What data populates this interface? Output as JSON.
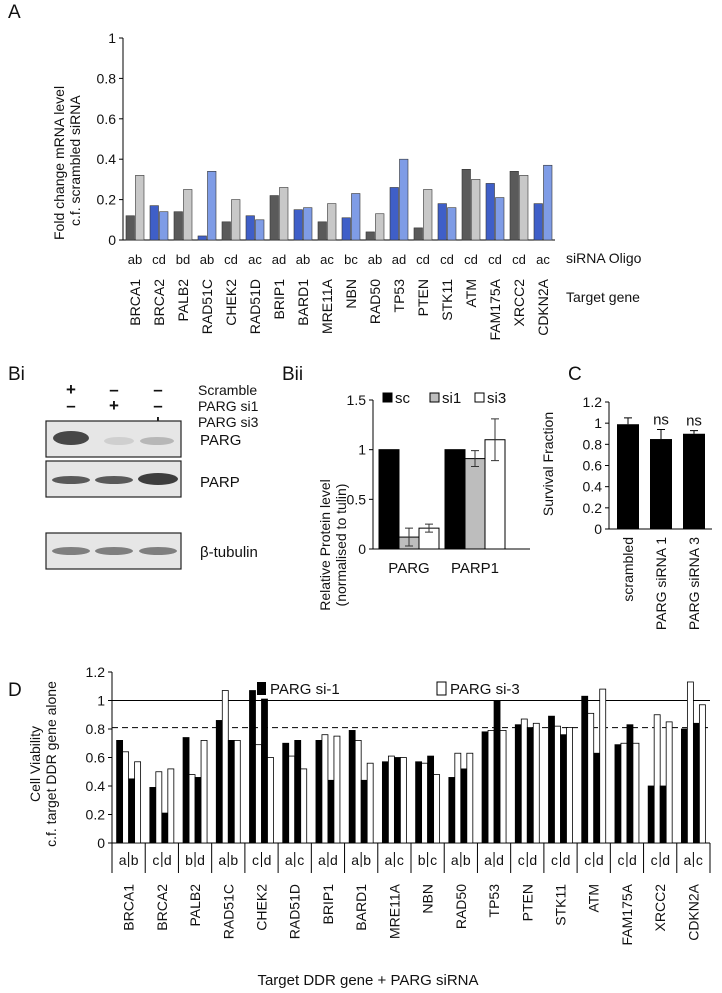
{
  "panels": {
    "A": {
      "label": "A",
      "ylabel_lines": [
        "Fold change mRNA level",
        "c.f. scrambled siRNA"
      ],
      "row_label_oligo": "siRNA Oligo",
      "row_label_gene": "Target gene",
      "colors": {
        "dark": "#5a5a5a",
        "light": "#c8c8c8",
        "blue_dark": "#3f5fc8",
        "blue_light": "#7f9ce6",
        "edge": "#333333"
      }
    },
    "Bi": {
      "label": "Bi",
      "conditions": [
        {
          "label": "Scramble",
          "signs": [
            "+",
            "–",
            "–"
          ]
        },
        {
          "label": "PARG si1",
          "signs": [
            "–",
            "+",
            "–"
          ]
        },
        {
          "label": "PARG si3",
          "signs": [
            "–",
            "–",
            "+"
          ]
        }
      ],
      "blots": [
        "PARG",
        "PARP",
        "β-tubulin"
      ]
    },
    "Bii": {
      "label": "Bii"
    },
    "C": {
      "label": "C"
    },
    "D": {
      "label": "D"
    }
  },
  "chart_data": [
    {
      "type": "bar",
      "panel": "A",
      "categories": [
        "BRCA1",
        "BRCA2",
        "PALB2",
        "RAD51C",
        "CHEK2",
        "RAD51D",
        "BRIP1",
        "BARD1",
        "MRE11A",
        "NBN",
        "RAD50",
        "TP53",
        "PTEN",
        "STK11",
        "ATM",
        "FAM175A",
        "XRCC2",
        "CDKN2A"
      ],
      "oligos": [
        "ab",
        "cd",
        "bd",
        "ab",
        "cd",
        "ac",
        "ad",
        "ab",
        "ac",
        "bc",
        "ab",
        "ad",
        "cd",
        "cd",
        "cd",
        "cd",
        "cd",
        "ac"
      ],
      "series": [
        {
          "values": [
            0.12,
            0.17,
            0.14,
            0.02,
            0.09,
            0.12,
            0.22,
            0.15,
            0.09,
            0.11,
            0.04,
            0.26,
            0.06,
            0.18,
            0.35,
            0.28,
            0.34,
            0.18
          ]
        },
        {
          "values": [
            0.32,
            0.14,
            0.25,
            0.34,
            0.2,
            0.1,
            0.26,
            0.16,
            0.18,
            0.23,
            0.13,
            0.4,
            0.25,
            0.16,
            0.3,
            0.21,
            0.32,
            0.37
          ]
        }
      ],
      "bar_colors": [
        "gray",
        "blue",
        "gray",
        "blue",
        "gray",
        "blue",
        "gray",
        "blue",
        "gray",
        "blue",
        "gray",
        "blue",
        "gray",
        "blue",
        "gray",
        "blue",
        "gray",
        "blue"
      ],
      "yticks": [
        "0",
        "0.2",
        "0.4",
        "0.6",
        "0.8",
        "1"
      ],
      "ylim": [
        0,
        1
      ]
    },
    {
      "type": "bar",
      "panel": "Bii",
      "ylabel_lines": [
        "Relative Protein level",
        "(normalised to tulin)"
      ],
      "categories": [
        "PARG",
        "PARP1"
      ],
      "series": [
        {
          "name": "sc",
          "values": [
            1.0,
            1.0
          ],
          "errors": [
            0,
            0
          ],
          "color": "#000000"
        },
        {
          "name": "si1",
          "values": [
            0.12,
            0.91
          ],
          "errors": [
            0.09,
            0.08
          ],
          "color": "#bdbdbd"
        },
        {
          "name": "si3",
          "values": [
            0.21,
            1.1
          ],
          "errors": [
            0.04,
            0.21
          ],
          "color": "#ffffff"
        }
      ],
      "yticks": [
        "0",
        "0.5",
        "1",
        "1.5"
      ],
      "ylim": [
        0,
        1.5
      ]
    },
    {
      "type": "bar",
      "panel": "C",
      "ylabel": "Survival Fraction",
      "categories": [
        "scrambled",
        "PARG siRNA 1",
        "PARG siRNA 3"
      ],
      "values": [
        0.99,
        0.85,
        0.9
      ],
      "errors": [
        0.06,
        0.09,
        0.03
      ],
      "annotations": [
        "",
        "ns",
        "ns"
      ],
      "yticks": [
        "0",
        "0.2",
        "0.4",
        "0.6",
        "0.8",
        "1",
        "1.2"
      ],
      "ylim": [
        0,
        1.2
      ]
    },
    {
      "type": "bar",
      "panel": "D",
      "ylabel_lines": [
        "Cell Viability",
        "c.f. target DDR gene alone"
      ],
      "xlabel": "Target DDR gene + PARG siRNA",
      "legend": [
        "PARG si-1",
        "PARG si-3"
      ],
      "categories": [
        "BRCA1",
        "BRCA2",
        "PALB2",
        "RAD51C",
        "CHEK2",
        "RAD51D",
        "BRIP1",
        "BARD1",
        "MRE11A",
        "NBN",
        "RAD50",
        "TP53",
        "PTEN",
        "STK11",
        "ATM",
        "FAM175A",
        "XRCC2",
        "CDKN2A"
      ],
      "oligos": [
        "ab",
        "cd",
        "bd",
        "ab",
        "cd",
        "ac",
        "ad",
        "ab",
        "ac",
        "bc",
        "ab",
        "ad",
        "cd",
        "cd",
        "cd",
        "cd",
        "cd",
        "ac"
      ],
      "bars": [
        [
          0.72,
          0.64,
          0.45,
          0.57
        ],
        [
          0.39,
          0.5,
          0.21,
          0.52
        ],
        [
          0.74,
          0.48,
          0.46,
          0.72
        ],
        [
          0.86,
          1.07,
          0.72,
          0.72
        ],
        [
          1.07,
          0.69,
          1.01,
          0.6
        ],
        [
          0.7,
          0.61,
          0.72,
          0.52
        ],
        [
          0.72,
          0.76,
          0.44,
          0.75
        ],
        [
          0.79,
          0.72,
          0.44,
          0.56
        ],
        [
          0.57,
          0.61,
          0.6,
          0.6
        ],
        [
          0.57,
          0.56,
          0.61,
          0.48
        ],
        [
          0.46,
          0.63,
          0.52,
          0.63
        ],
        [
          0.78,
          0.79,
          1.0,
          0.79
        ],
        [
          0.83,
          0.87,
          0.81,
          0.84
        ],
        [
          0.89,
          0.82,
          0.76,
          0.81
        ],
        [
          1.03,
          0.91,
          0.63,
          1.08
        ],
        [
          0.69,
          0.7,
          0.83,
          0.7
        ],
        [
          0.4,
          0.9,
          0.4,
          0.85
        ],
        [
          0.8,
          1.13,
          0.84,
          0.97
        ]
      ],
      "bar_styles": [
        "black",
        "white",
        "black",
        "white"
      ],
      "reference_lines": {
        "solid": 1.0,
        "dashed": 0.81
      },
      "yticks": [
        "0",
        "0.2",
        "0.4",
        "0.6",
        "0.8",
        "1",
        "1.2"
      ],
      "ylim": [
        0,
        1.2
      ]
    }
  ]
}
